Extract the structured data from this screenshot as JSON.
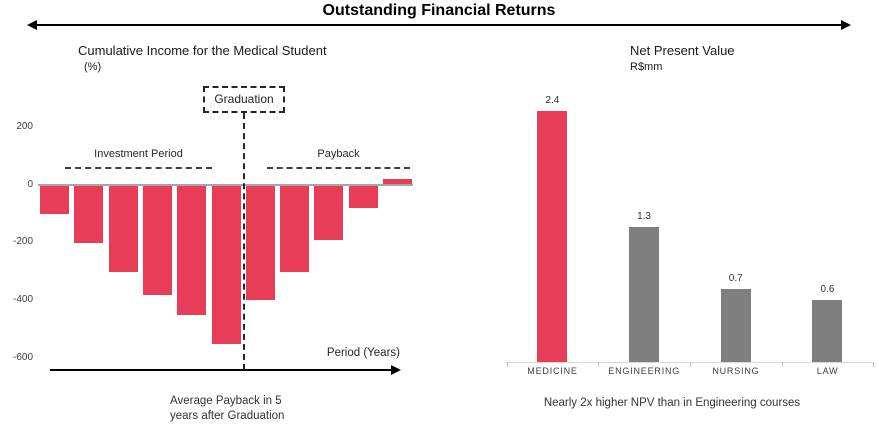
{
  "page": {
    "title": "Outstanding Financial Returns"
  },
  "left_chart": {
    "title": "Cumulative Income for the Medical Student",
    "subtitle": "(%)",
    "graduation_label": "Graduation",
    "investment_period_label": "Investment Period",
    "payback_label": "Payback",
    "xaxis_label": "Period (Years)",
    "caption_line1": "Average Payback in 5",
    "caption_line2": "years after Graduation"
  },
  "right_chart": {
    "title": "Net Present Value",
    "subtitle": "R$mm",
    "caption": "Nearly 2x higher NPV than in Engineering courses"
  },
  "colors": {
    "accent_red": "#E83D58",
    "bar_gray": "#7F7F7F",
    "zero_line_gray": "#a6a6a6",
    "baseline_gray": "#d9d9d9"
  },
  "chart_data": [
    {
      "type": "bar",
      "title": "Cumulative Income for the Medical Student",
      "ylabel": "(%)",
      "xlabel": "Period (Years)",
      "yticks": [
        200,
        0,
        -200,
        -400,
        -600
      ],
      "ylim": [
        -650,
        250
      ],
      "values": [
        -100,
        -200,
        -300,
        -380,
        -450,
        -550,
        -400,
        -300,
        -190,
        -80,
        20
      ],
      "annotations": [
        "Graduation",
        "Investment Period",
        "Payback"
      ],
      "legend": "none",
      "grid": false
    },
    {
      "type": "bar",
      "title": "Net Present Value",
      "ylabel": "R$mm",
      "categories": [
        "MEDICINE",
        "ENGINEERING",
        "NURSING",
        "LAW"
      ],
      "values": [
        2.4,
        1.3,
        0.7,
        0.6
      ],
      "bar_colors": [
        "#E83D58",
        "#7F7F7F",
        "#7F7F7F",
        "#7F7F7F"
      ],
      "data_labels": [
        "2.4",
        "1.3",
        "0.7",
        "0.6"
      ],
      "ylim": [
        0,
        2.6
      ],
      "legend": "none",
      "grid": false
    }
  ]
}
